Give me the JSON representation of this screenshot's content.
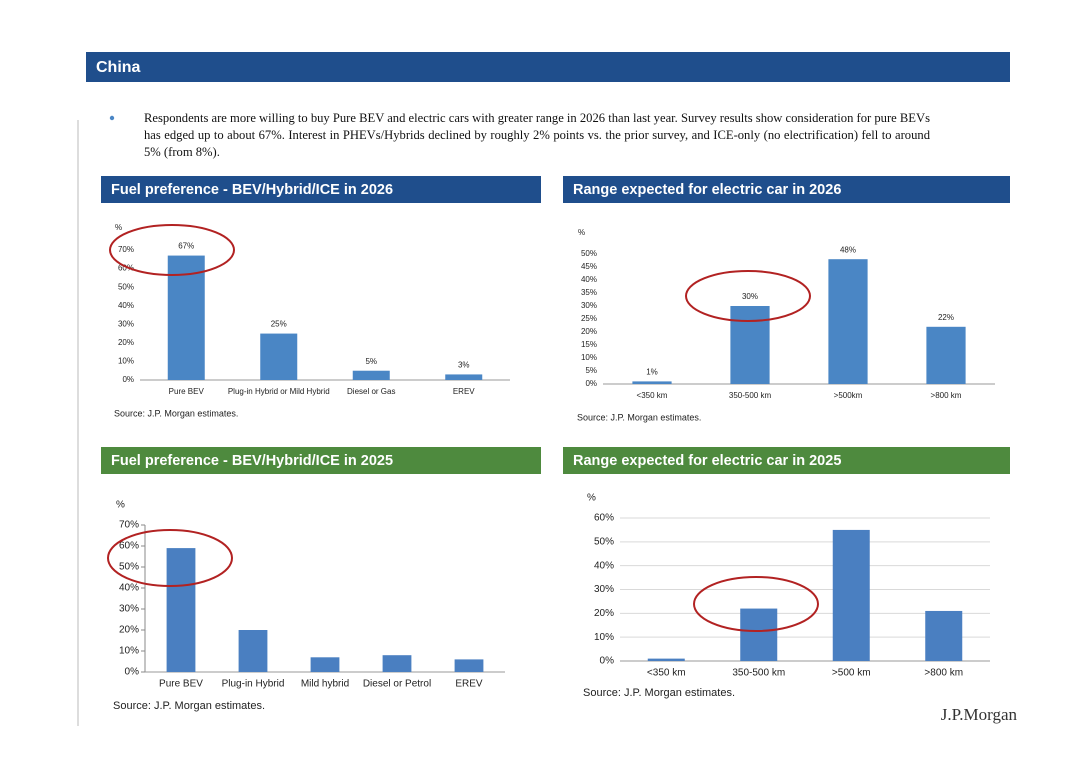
{
  "header": {
    "title": "China"
  },
  "bullet": "Respondents are more willing to buy Pure BEV and electric cars with greater range in 2026 than last year. Survey results show consideration for pure BEVs has edged up to about 67%. Interest in PHEVs/Hybrids declined by roughly 2% points vs. the prior survey, and ICE-only (no electrification) fell to around 5% (from 8%).",
  "footer": {
    "logo": "J.P.Morgan"
  },
  "chart_data": [
    {
      "type": "bar",
      "title": "Fuel preference - BEV/Hybrid/ICE in 2026",
      "ylabel": "%",
      "categories": [
        "Pure BEV",
        "Plug-in Hybrid or Mild Hybrid",
        "Diesel or Gas",
        "EREV"
      ],
      "values": [
        67,
        25,
        5,
        3
      ],
      "value_labels": [
        "67%",
        "25%",
        "5%",
        "3%"
      ],
      "ylim": [
        0,
        70
      ],
      "yticks": [
        {
          "value": 0,
          "label": "0%"
        },
        {
          "value": 10,
          "label": "10%"
        },
        {
          "value": 20,
          "label": "20%"
        },
        {
          "value": 30,
          "label": "30%"
        },
        {
          "value": 40,
          "label": "40%"
        },
        {
          "value": 50,
          "label": "50%"
        },
        {
          "value": 60,
          "label": "60%"
        },
        {
          "value": 70,
          "label": "70%"
        }
      ],
      "color": "#4a86c5",
      "grid": false,
      "source": "Source: J.P. Morgan estimates."
    },
    {
      "type": "bar",
      "title": "Range expected for electric car in 2026",
      "ylabel": "%",
      "categories": [
        "<350 km",
        "350-500 km",
        ">500km",
        ">800 km"
      ],
      "values": [
        1,
        30,
        48,
        22
      ],
      "value_labels": [
        "1%",
        "30%",
        "48%",
        "22%"
      ],
      "ylim": [
        0,
        50
      ],
      "yticks": [
        {
          "value": 0,
          "label": "0%"
        },
        {
          "value": 5,
          "label": "5%"
        },
        {
          "value": 10,
          "label": "10%"
        },
        {
          "value": 15,
          "label": "15%"
        },
        {
          "value": 20,
          "label": "20%"
        },
        {
          "value": 25,
          "label": "25%"
        },
        {
          "value": 30,
          "label": "30%"
        },
        {
          "value": 35,
          "label": "35%"
        },
        {
          "value": 40,
          "label": "40%"
        },
        {
          "value": 45,
          "label": "45%"
        },
        {
          "value": 50,
          "label": "50%"
        }
      ],
      "color": "#4a86c5",
      "grid": false,
      "source": "Source: J.P. Morgan estimates."
    },
    {
      "type": "bar",
      "title": "Fuel preference - BEV/Hybrid/ICE in 2025",
      "ylabel": "%",
      "categories": [
        "Pure BEV",
        "Plug-in Hybrid",
        "Mild hybrid",
        "Diesel or Petrol",
        "EREV"
      ],
      "values": [
        59,
        20,
        7,
        8,
        6
      ],
      "ylim": [
        0,
        70
      ],
      "yticks": [
        {
          "value": 0,
          "label": "0%"
        },
        {
          "value": 10,
          "label": "10%"
        },
        {
          "value": 20,
          "label": "20%"
        },
        {
          "value": 30,
          "label": "30%"
        },
        {
          "value": 40,
          "label": "40%"
        },
        {
          "value": 50,
          "label": "50%"
        },
        {
          "value": 60,
          "label": "60%"
        },
        {
          "value": 70,
          "label": "70%"
        }
      ],
      "color": "#4a7fc1",
      "grid": false,
      "source": "Source: J.P. Morgan estimates."
    },
    {
      "type": "bar",
      "title": "Range expected for electric car in 2025",
      "ylabel": "%",
      "categories": [
        "<350 km",
        "350-500 km",
        ">500 km",
        ">800 km"
      ],
      "values": [
        1,
        22,
        55,
        21
      ],
      "ylim": [
        0,
        60
      ],
      "yticks": [
        {
          "value": 0,
          "label": "0%"
        },
        {
          "value": 10,
          "label": "10%"
        },
        {
          "value": 20,
          "label": "20%"
        },
        {
          "value": 30,
          "label": "30%"
        },
        {
          "value": 40,
          "label": "40%"
        },
        {
          "value": 50,
          "label": "50%"
        },
        {
          "value": 60,
          "label": "60%"
        }
      ],
      "color": "#4a7fc1",
      "grid": true,
      "source": "Source: J.P. Morgan estimates."
    }
  ]
}
